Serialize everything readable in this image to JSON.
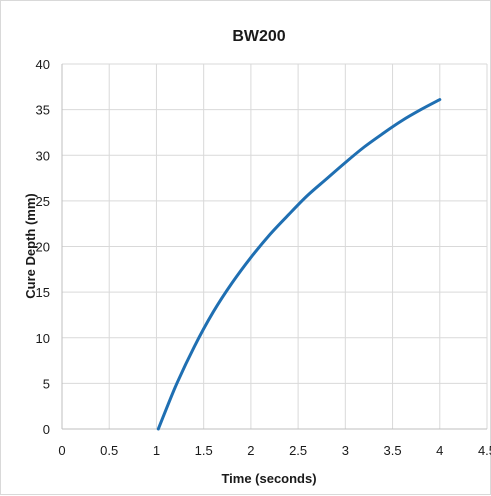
{
  "chart_data": {
    "type": "line",
    "title": "BW200",
    "xlabel": "Time (seconds)",
    "ylabel": "Cure Depth (mm)",
    "xlim": [
      0,
      4.5
    ],
    "ylim": [
      0,
      40
    ],
    "x_ticks": [
      "0",
      "0.5",
      "1",
      "1.5",
      "2",
      "2.5",
      "3",
      "3.5",
      "4",
      "4.5"
    ],
    "y_ticks": [
      "0",
      "5",
      "10",
      "15",
      "20",
      "25",
      "30",
      "35",
      "40"
    ],
    "grid": true,
    "legend": false,
    "series_color": "#1f6fb2",
    "series": [
      {
        "x": [
          1.02,
          1.2,
          1.4,
          1.6,
          1.8,
          2.0,
          2.2,
          2.4,
          2.6,
          2.8,
          3.0,
          3.2,
          3.4,
          3.6,
          3.8,
          4.0
        ],
        "y": [
          0,
          4.6,
          9.0,
          12.8,
          16.0,
          18.8,
          21.3,
          23.5,
          25.6,
          27.4,
          29.2,
          30.9,
          32.4,
          33.8,
          35.0,
          36.1
        ]
      }
    ]
  }
}
